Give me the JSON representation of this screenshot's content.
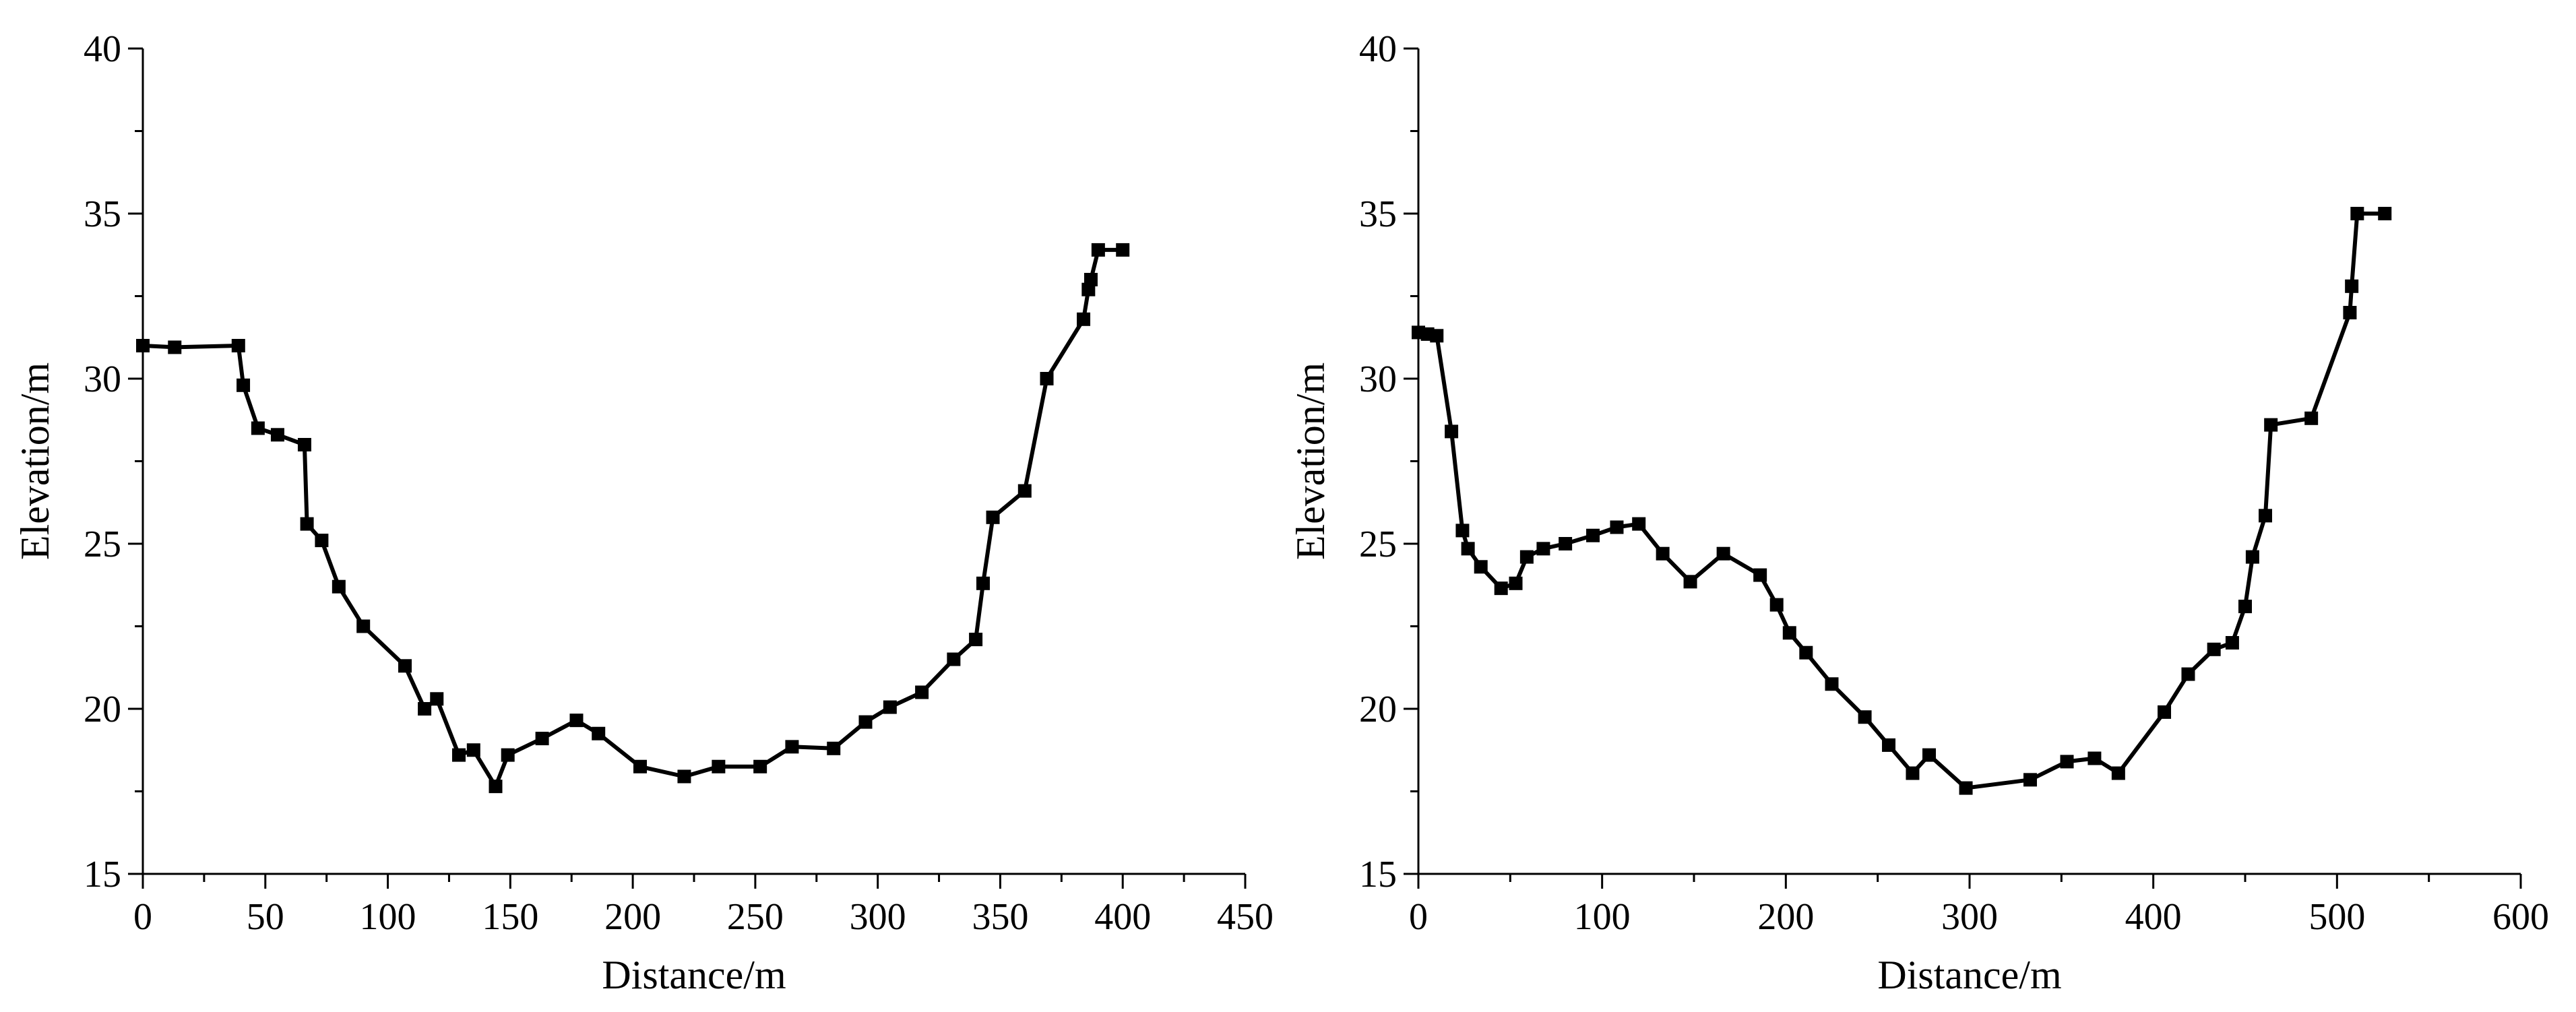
{
  "chart_data": [
    {
      "type": "line",
      "title": "",
      "xlabel": "Distance/m",
      "ylabel": "Elevation/m",
      "xlim": [
        0,
        450
      ],
      "ylim": [
        15,
        40
      ],
      "xticks": [
        0,
        50,
        100,
        150,
        200,
        250,
        300,
        350,
        400,
        450
      ],
      "yticks": [
        15,
        20,
        25,
        30,
        35,
        40
      ],
      "grid": false,
      "marker": "square",
      "color": "#000000",
      "series": [
        {
          "x": [
            0,
            13,
            39,
            41,
            47,
            55,
            66,
            67,
            73,
            80,
            90,
            107,
            115,
            120,
            129,
            135,
            144,
            149,
            163,
            177,
            186,
            203,
            221,
            235,
            252,
            265,
            282,
            295,
            305,
            318,
            331,
            340,
            343,
            347,
            360,
            369,
            384,
            386,
            387,
            390,
            400
          ],
          "y": [
            31.0,
            30.95,
            31.0,
            29.8,
            28.5,
            28.3,
            28.0,
            25.6,
            25.1,
            23.7,
            22.5,
            21.3,
            20.0,
            20.3,
            18.6,
            18.75,
            17.65,
            18.6,
            19.1,
            19.65,
            19.25,
            18.25,
            17.95,
            18.25,
            18.25,
            18.85,
            18.8,
            19.6,
            20.05,
            20.5,
            21.5,
            22.1,
            23.8,
            25.8,
            26.6,
            30.0,
            31.8,
            32.7,
            33.0,
            33.9,
            33.9
          ]
        }
      ]
    },
    {
      "type": "line",
      "title": "",
      "xlabel": "Distance/m",
      "ylabel": "Elevation/m",
      "xlim": [
        0,
        600
      ],
      "ylim": [
        15,
        40
      ],
      "xticks": [
        0,
        100,
        200,
        300,
        400,
        500,
        600
      ],
      "yticks": [
        15,
        20,
        25,
        30,
        35,
        40
      ],
      "grid": false,
      "marker": "square",
      "color": "#000000",
      "series": [
        {
          "x": [
            0,
            5,
            10,
            18,
            24,
            27,
            34,
            45,
            53,
            59,
            68,
            80,
            95,
            108,
            120,
            133,
            148,
            166,
            186,
            195,
            202,
            211,
            225,
            243,
            256,
            269,
            278,
            298,
            333,
            353,
            368,
            381,
            406,
            419,
            433,
            443,
            450,
            454,
            461,
            464,
            486,
            507,
            508,
            511,
            526
          ],
          "y": [
            31.4,
            31.35,
            31.3,
            28.4,
            25.4,
            24.85,
            24.3,
            23.65,
            23.8,
            24.6,
            24.85,
            25.0,
            25.25,
            25.5,
            25.6,
            24.7,
            23.85,
            24.7,
            24.05,
            23.15,
            22.3,
            21.7,
            20.75,
            19.75,
            18.9,
            18.05,
            18.6,
            17.6,
            17.85,
            18.4,
            18.5,
            18.05,
            19.9,
            21.05,
            21.8,
            22.0,
            23.1,
            24.6,
            25.85,
            28.6,
            28.8,
            32.0,
            32.8,
            35.0,
            35.0
          ]
        }
      ]
    }
  ]
}
